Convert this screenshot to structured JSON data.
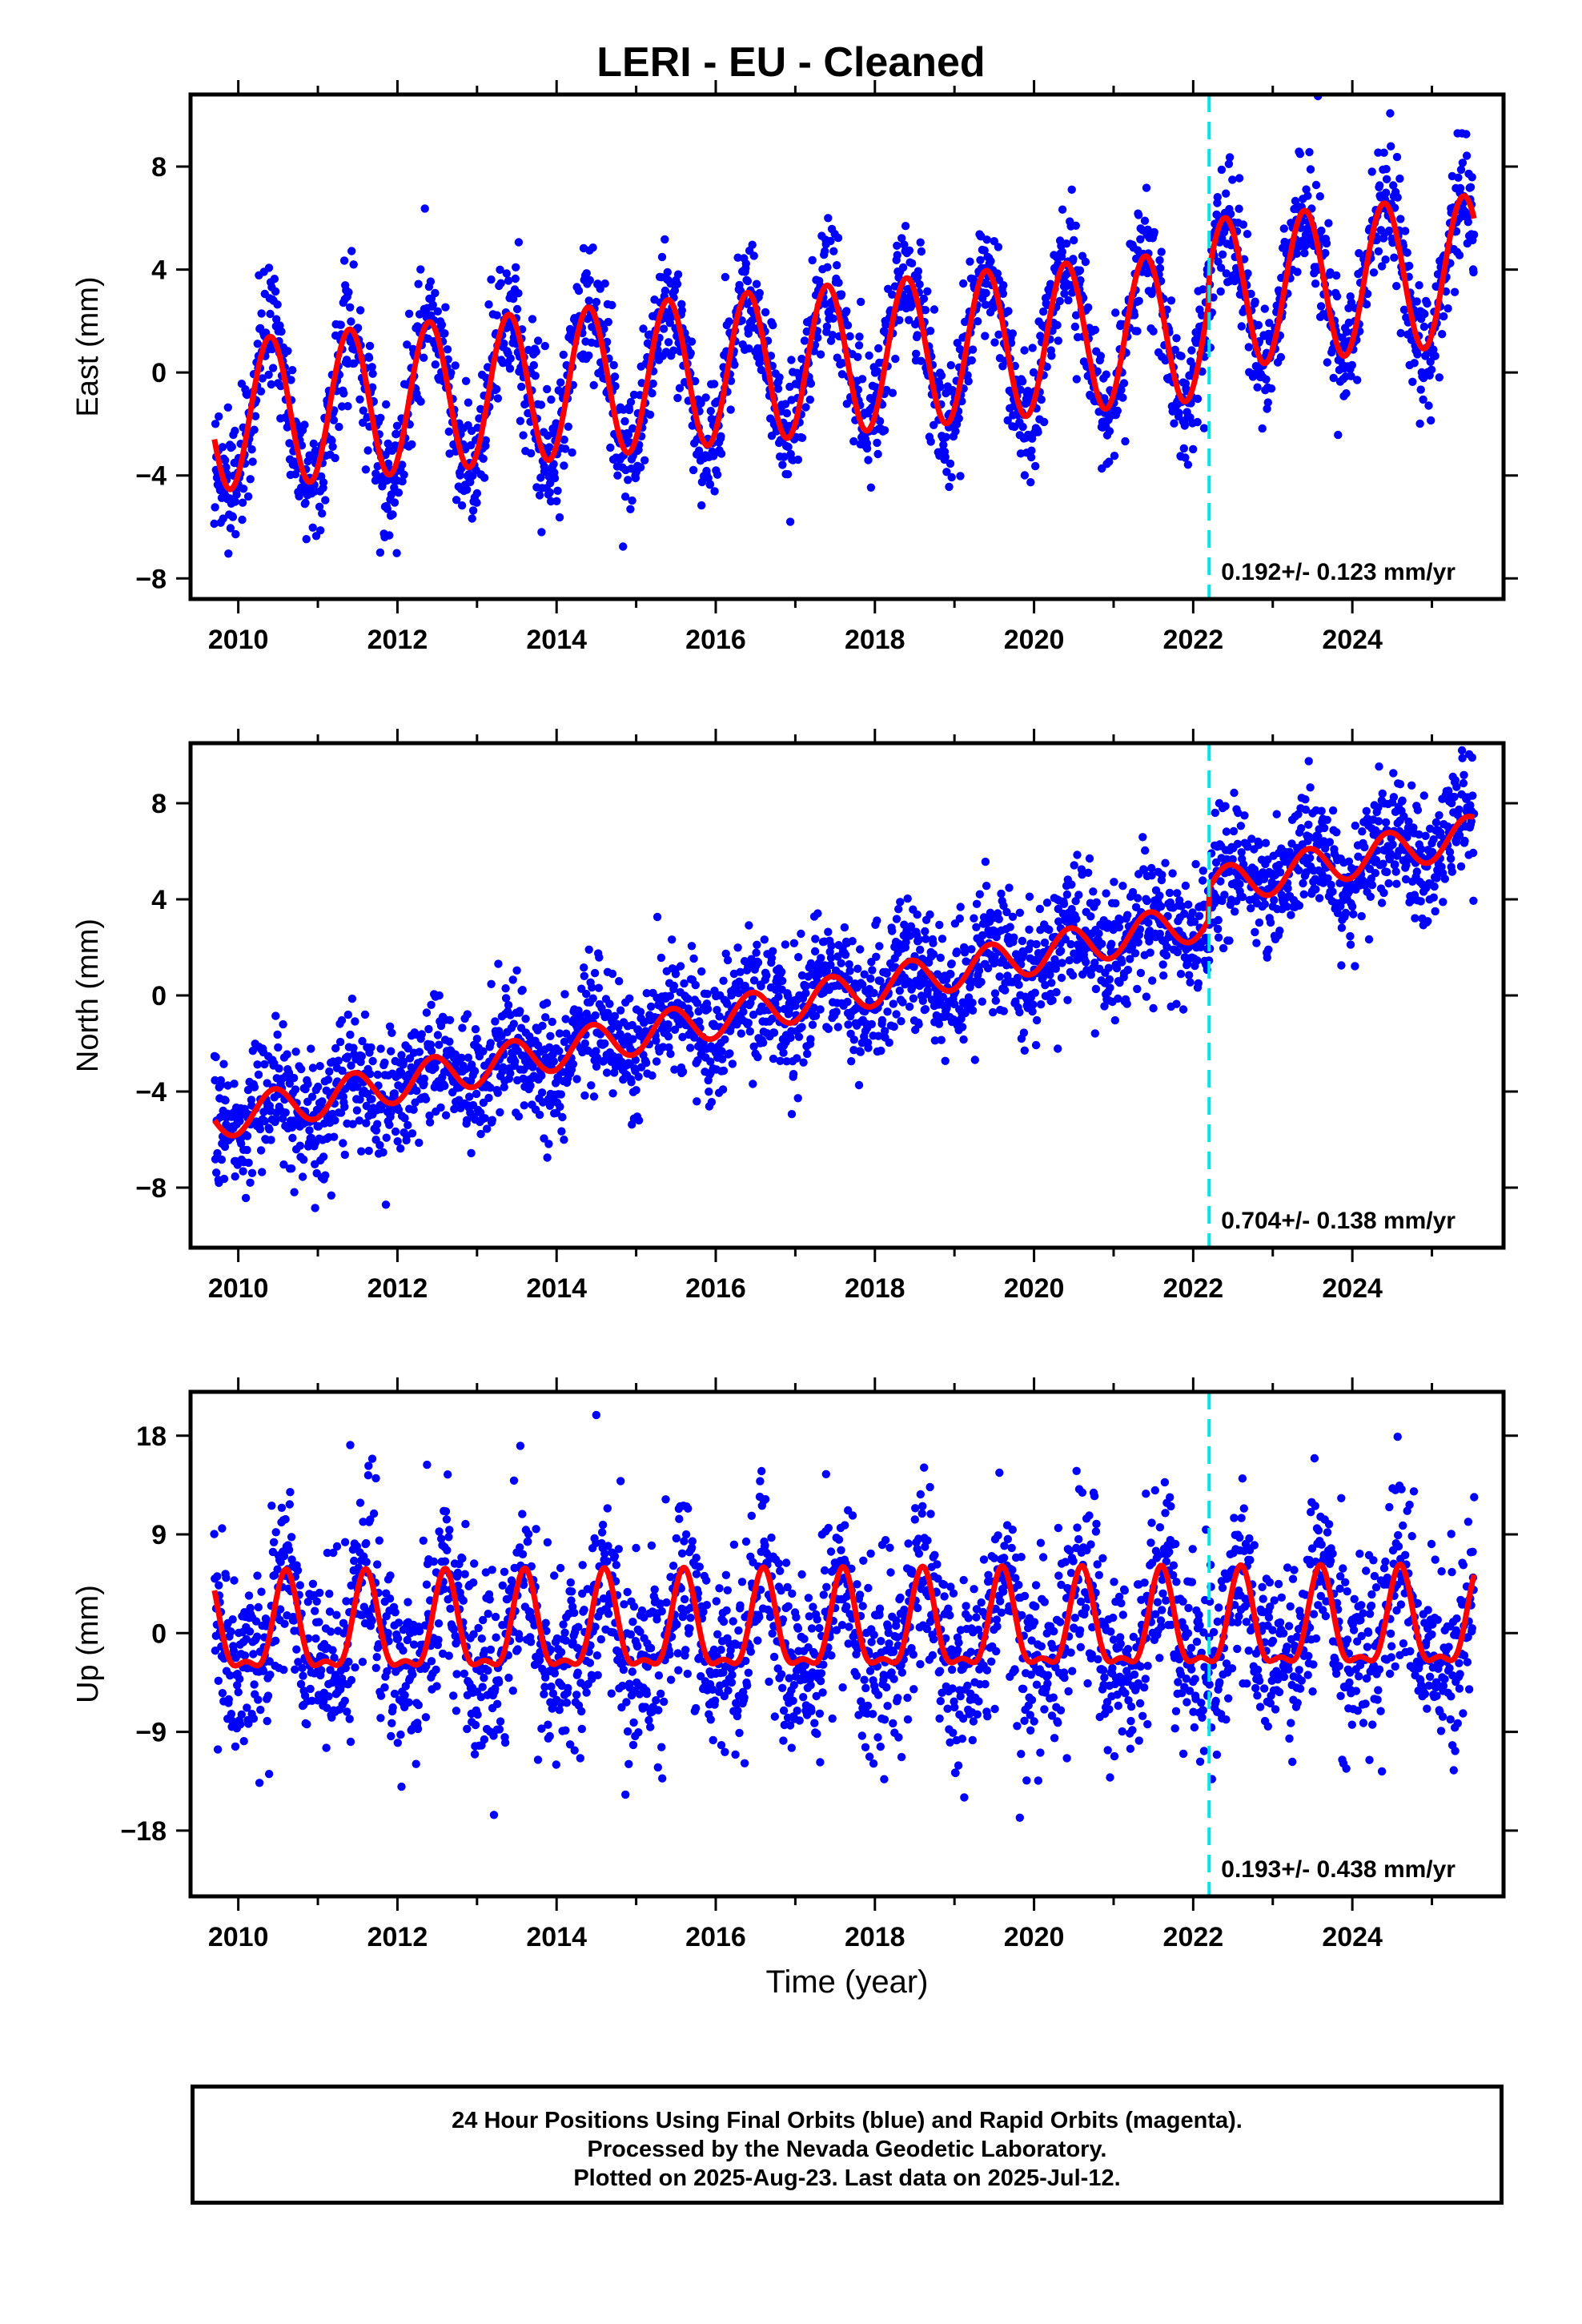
{
  "title": "LERI  - EU - Cleaned",
  "xlabel": "Time (year)",
  "footer": [
    "24 Hour Positions Using Final Orbits (blue) and Rapid Orbits (magenta).",
    "Processed by the Nevada Geodetic Laboratory.",
    "Plotted on 2025-Aug-23. Last data on 2025-Jul-12."
  ],
  "colors": {
    "points": "#0000ff",
    "model": "#ff0000",
    "event_line": "#00e5e5",
    "axes": "#000000"
  },
  "chart_data": [
    {
      "type": "scatter",
      "ylabel": "East (mm)",
      "xlim": [
        2009.4,
        2025.9
      ],
      "ylim": [
        -8.8,
        10.8
      ],
      "yticks": [
        -8,
        -4,
        0,
        4,
        8
      ],
      "xticks": [
        2010,
        2012,
        2014,
        2016,
        2018,
        2020,
        2022,
        2024
      ],
      "rate_label": "0.192+/- 0.123 mm/yr",
      "event_line_x": 2022.2,
      "series": [
        {
          "kind": "points",
          "x_range": [
            2009.7,
            2025.53
          ],
          "model": {
            "trend_start": -1.7,
            "trend_end": 2.8,
            "annual_amp": 2.9,
            "annual_peak": 0.4,
            "semiannual_amp": 0.0,
            "semiannual_peak": 0.0,
            "offset_x": 2022.2,
            "offset": 1.2
          },
          "noise_sd": 1.2
        },
        {
          "kind": "line",
          "name": "model"
        }
      ]
    },
    {
      "type": "scatter",
      "ylabel": "North (mm)",
      "xlim": [
        2009.4,
        2025.9
      ],
      "ylim": [
        -10.5,
        10.5
      ],
      "yticks": [
        -8,
        -4,
        0,
        4,
        8
      ],
      "xticks": [
        2010,
        2012,
        2014,
        2016,
        2018,
        2020,
        2022,
        2024
      ],
      "rate_label": "0.704+/- 0.138 mm/yr",
      "event_line_x": 2022.2,
      "series": [
        {
          "kind": "points",
          "x_range": [
            2009.7,
            2025.53
          ],
          "model": {
            "trend_start": -5.2,
            "trend_end": 5.4,
            "annual_amp": 0.8,
            "annual_peak": 0.45,
            "semiannual_amp": 0.0,
            "semiannual_peak": 0.0,
            "offset_x": 2022.2,
            "offset": 1.3
          },
          "noise_sd": 1.3
        },
        {
          "kind": "line",
          "name": "model"
        }
      ]
    },
    {
      "type": "scatter",
      "ylabel": "Up (mm)",
      "xlim": [
        2009.4,
        2025.9
      ],
      "ylim": [
        -24,
        22
      ],
      "yticks": [
        -18,
        -9,
        0,
        9,
        18
      ],
      "xticks": [
        2010,
        2012,
        2014,
        2016,
        2018,
        2020,
        2022,
        2024
      ],
      "rate_label": "0.193+/- 0.438 mm/yr",
      "event_line_x": 2022.2,
      "series": [
        {
          "kind": "points",
          "x_range": [
            2009.7,
            2025.53
          ],
          "model": {
            "trend_start": 0.0,
            "trend_end": 0.5,
            "annual_amp": 4.2,
            "annual_peak": 0.6,
            "semiannual_amp": 1.6,
            "semiannual_peak": 0.6,
            "offset_x": 2022.2,
            "offset": 0.0
          },
          "noise_sd": 4.2
        },
        {
          "kind": "line",
          "name": "model"
        }
      ]
    }
  ]
}
